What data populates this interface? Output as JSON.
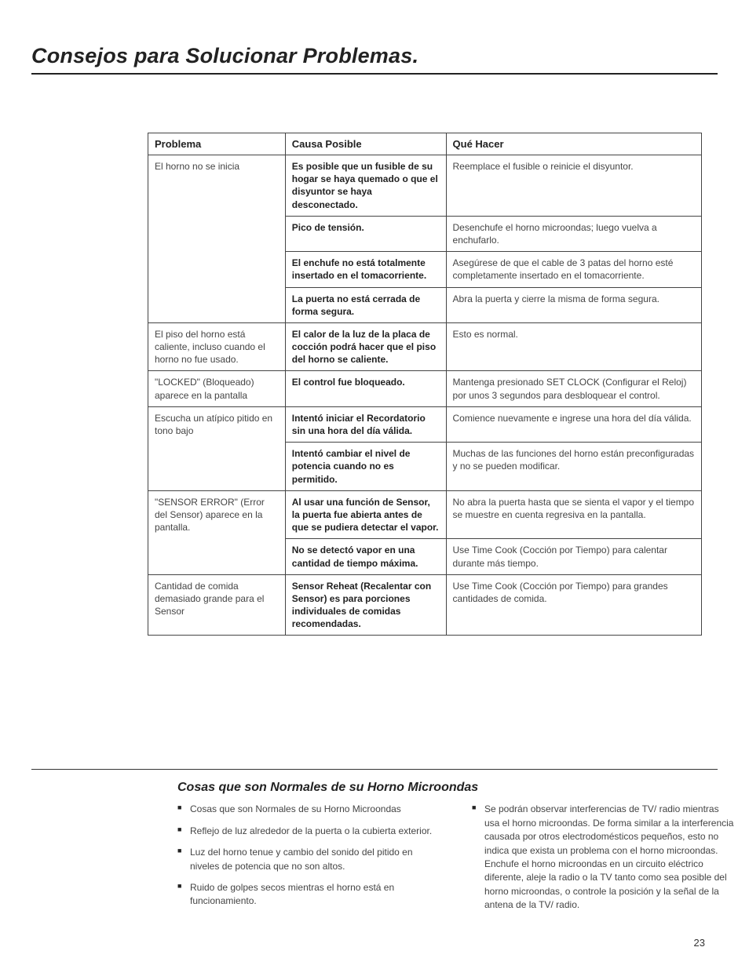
{
  "page": {
    "title": "Consejos para Solucionar Problemas.",
    "subheading": "Cosas que son Normales de su Horno Microondas",
    "page_number": "23"
  },
  "table": {
    "headers": {
      "problema": "Problema",
      "causa": "Causa Posible",
      "que_hacer": "Qué Hacer"
    },
    "rows": [
      {
        "problema": "El horno no se inicia",
        "causa": "Es posible que un fusible de su hogar se haya quemado o que el disyuntor se haya desconectado.",
        "que_hacer": "Reemplace el fusible o reinicie el disyuntor.",
        "problema_rowspan": 4
      },
      {
        "causa": "Pico de tensión.",
        "que_hacer": "Desenchufe el horno microondas; luego vuelva a enchufarlo."
      },
      {
        "causa": "El enchufe no está totalmente insertado en el tomacorriente.",
        "que_hacer": "Asegúrese de que el cable de 3 patas del horno esté completamente insertado en el tomacorriente."
      },
      {
        "causa": "La puerta no está cerrada de forma segura.",
        "que_hacer": "Abra la puerta y cierre la misma de forma segura."
      },
      {
        "problema": "El piso del horno está caliente, incluso cuando el horno no fue usado.",
        "causa": "El calor de la luz de la placa de cocción podrá hacer que el piso del horno se caliente.",
        "que_hacer": "Esto es normal.",
        "problema_rowspan": 1
      },
      {
        "problema": "\"LOCKED\" (Bloqueado) aparece en la pantalla",
        "causa": "El control fue bloqueado.",
        "que_hacer": "Mantenga presionado  SET CLOCK (Configurar el Reloj)  por unos 3 segundos para desbloquear el control.",
        "problema_rowspan": 1
      },
      {
        "problema": "Escucha un atípico pitido en tono bajo",
        "causa": "Intentó iniciar el Recordatorio sin una hora del día válida.",
        "que_hacer": "Comience nuevamente e ingrese una hora del día válida.",
        "problema_rowspan": 2
      },
      {
        "causa": "Intentó cambiar el nivel de potencia cuando no es permitido.",
        "que_hacer": "Muchas de las funciones del horno están preconfiguradas y no se pueden modificar."
      },
      {
        "problema": "\"SENSOR ERROR\" (Error del Sensor) aparece en la pantalla.",
        "causa": "Al usar una función de Sensor, la puerta fue abierta antes de que se pudiera detectar el vapor.",
        "que_hacer": "No abra la puerta hasta que se sienta el vapor y el tiempo se muestre en cuenta regresiva en la pantalla.",
        "problema_rowspan": 2
      },
      {
        "causa": "No se detectó vapor en una cantidad de tiempo máxima.",
        "que_hacer": "Use Time Cook  (Cocción por Tiempo) para calentar durante más tiempo."
      },
      {
        "problema": "Cantidad de comida demasiado grande para el Sensor",
        "causa": "Sensor Reheat (Recalentar con Sensor) es para porciones individuales de comidas recomendadas.",
        "que_hacer": "Use Time Cook (Cocción por Tiempo) para grandes cantidades de comida.",
        "problema_rowspan": 1
      }
    ]
  },
  "normals": {
    "left": [
      "Cosas que son Normales de su Horno Microondas",
      "Reflejo de luz alrededor de la puerta o la cubierta exterior.",
      "Luz del horno tenue y cambio del sonido del pitido en niveles de potencia que no son altos.",
      "Ruido de golpes secos mientras el horno está en funcionamiento."
    ],
    "right": [
      "Se podrán observar interferencias de TV/ radio mientras usa el horno microondas. De forma similar a la interferencia causada por otros electrodomésticos pequeños, esto no indica que exista un problema con el horno microondas. Enchufe el horno microondas en un circuito eléctrico diferente, aleje la radio o la TV tanto como sea posible del horno microondas, o controle la posición y la señal de la antena de la TV/ radio."
    ]
  },
  "style": {
    "page_bg": "#ffffff",
    "text_color": "#333333",
    "border_color": "#444444",
    "title_fontsize": 27,
    "body_fontsize": 12
  }
}
